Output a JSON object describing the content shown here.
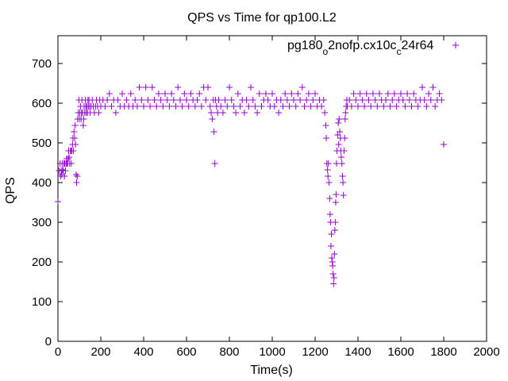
{
  "chart_data": {
    "type": "scatter",
    "title": "QPS vs Time for qp100.L2",
    "xlabel": "Time(s)",
    "ylabel": "QPS",
    "xlim": [
      0,
      2000
    ],
    "ylim": [
      0,
      770
    ],
    "xticks": [
      0,
      200,
      400,
      600,
      800,
      1000,
      1200,
      1400,
      1600,
      1800,
      2000
    ],
    "yticks": [
      0,
      100,
      200,
      300,
      400,
      500,
      600,
      700
    ],
    "legend_position": "top-right",
    "grid": false,
    "series": [
      {
        "name_parts": [
          "pg180",
          "o",
          "2nofp.cx10c",
          "c",
          "24r64"
        ],
        "marker": "plus",
        "color": "#9400d3",
        "points": [
          [
            0,
            352
          ],
          [
            5,
            430
          ],
          [
            10,
            448
          ],
          [
            12,
            416
          ],
          [
            15,
            430
          ],
          [
            18,
            420
          ],
          [
            20,
            448
          ],
          [
            22,
            432
          ],
          [
            25,
            430
          ],
          [
            28,
            448
          ],
          [
            30,
            416
          ],
          [
            32,
            448
          ],
          [
            35,
            430
          ],
          [
            38,
            448
          ],
          [
            40,
            460
          ],
          [
            42,
            448
          ],
          [
            45,
            448
          ],
          [
            48,
            460
          ],
          [
            50,
            480
          ],
          [
            52,
            464
          ],
          [
            55,
            448
          ],
          [
            58,
            480
          ],
          [
            60,
            480
          ],
          [
            62,
            448
          ],
          [
            65,
            480
          ],
          [
            68,
            496
          ],
          [
            70,
            512
          ],
          [
            72,
            480
          ],
          [
            75,
            528
          ],
          [
            78,
            512
          ],
          [
            80,
            544
          ],
          [
            82,
            496
          ],
          [
            85,
            420
          ],
          [
            87,
            400
          ],
          [
            90,
            416
          ],
          [
            92,
            560
          ],
          [
            95,
            576
          ],
          [
            98,
            608
          ],
          [
            100,
            560
          ],
          [
            102,
            576
          ],
          [
            105,
            592
          ],
          [
            108,
            560
          ],
          [
            110,
            576
          ],
          [
            112,
            608
          ],
          [
            115,
            576
          ],
          [
            118,
            544
          ],
          [
            120,
            560
          ],
          [
            122,
            592
          ],
          [
            125,
            576
          ],
          [
            128,
            608
          ],
          [
            130,
            592
          ],
          [
            132,
            576
          ],
          [
            135,
            592
          ],
          [
            138,
            576
          ],
          [
            140,
            608
          ],
          [
            142,
            592
          ],
          [
            145,
            608
          ],
          [
            148,
            592
          ],
          [
            150,
            576
          ],
          [
            155,
            592
          ],
          [
            160,
            608
          ],
          [
            165,
            592
          ],
          [
            170,
            576
          ],
          [
            175,
            592
          ],
          [
            180,
            608
          ],
          [
            185,
            592
          ],
          [
            190,
            576
          ],
          [
            195,
            608
          ],
          [
            200,
            592
          ],
          [
            210,
            608
          ],
          [
            220,
            592
          ],
          [
            230,
            608
          ],
          [
            240,
            624
          ],
          [
            250,
            592
          ],
          [
            260,
            608
          ],
          [
            270,
            576
          ],
          [
            280,
            608
          ],
          [
            290,
            592
          ],
          [
            300,
            624
          ],
          [
            310,
            592
          ],
          [
            320,
            608
          ],
          [
            330,
            592
          ],
          [
            340,
            624
          ],
          [
            350,
            592
          ],
          [
            360,
            608
          ],
          [
            370,
            592
          ],
          [
            380,
            640
          ],
          [
            390,
            608
          ],
          [
            400,
            592
          ],
          [
            410,
            640
          ],
          [
            420,
            608
          ],
          [
            430,
            592
          ],
          [
            440,
            640
          ],
          [
            450,
            608
          ],
          [
            460,
            592
          ],
          [
            470,
            624
          ],
          [
            480,
            608
          ],
          [
            490,
            592
          ],
          [
            500,
            624
          ],
          [
            510,
            608
          ],
          [
            520,
            592
          ],
          [
            530,
            624
          ],
          [
            540,
            608
          ],
          [
            550,
            592
          ],
          [
            560,
            640
          ],
          [
            570,
            608
          ],
          [
            580,
            592
          ],
          [
            590,
            624
          ],
          [
            600,
            608
          ],
          [
            610,
            592
          ],
          [
            620,
            624
          ],
          [
            630,
            608
          ],
          [
            640,
            592
          ],
          [
            650,
            608
          ],
          [
            660,
            624
          ],
          [
            670,
            592
          ],
          [
            680,
            640
          ],
          [
            690,
            608
          ],
          [
            700,
            640
          ],
          [
            710,
            592
          ],
          [
            715,
            576
          ],
          [
            720,
            560
          ],
          [
            725,
            608
          ],
          [
            728,
            528
          ],
          [
            732,
            448
          ],
          [
            735,
            608
          ],
          [
            740,
            592
          ],
          [
            745,
            576
          ],
          [
            750,
            608
          ],
          [
            760,
            592
          ],
          [
            770,
            576
          ],
          [
            780,
            608
          ],
          [
            790,
            592
          ],
          [
            800,
            640
          ],
          [
            810,
            608
          ],
          [
            820,
            592
          ],
          [
            830,
            576
          ],
          [
            840,
            624
          ],
          [
            850,
            592
          ],
          [
            860,
            608
          ],
          [
            870,
            576
          ],
          [
            880,
            608
          ],
          [
            890,
            592
          ],
          [
            900,
            640
          ],
          [
            910,
            608
          ],
          [
            920,
            592
          ],
          [
            930,
            576
          ],
          [
            940,
            624
          ],
          [
            950,
            592
          ],
          [
            960,
            608
          ],
          [
            970,
            624
          ],
          [
            980,
            608
          ],
          [
            990,
            592
          ],
          [
            1000,
            624
          ],
          [
            1010,
            592
          ],
          [
            1020,
            608
          ],
          [
            1030,
            576
          ],
          [
            1040,
            608
          ],
          [
            1050,
            592
          ],
          [
            1060,
            624
          ],
          [
            1070,
            608
          ],
          [
            1080,
            592
          ],
          [
            1090,
            624
          ],
          [
            1100,
            608
          ],
          [
            1110,
            592
          ],
          [
            1120,
            624
          ],
          [
            1130,
            608
          ],
          [
            1140,
            640
          ],
          [
            1150,
            592
          ],
          [
            1160,
            608
          ],
          [
            1170,
            624
          ],
          [
            1180,
            592
          ],
          [
            1190,
            608
          ],
          [
            1200,
            624
          ],
          [
            1210,
            592
          ],
          [
            1220,
            608
          ],
          [
            1230,
            592
          ],
          [
            1240,
            608
          ],
          [
            1245,
            576
          ],
          [
            1250,
            544
          ],
          [
            1252,
            512
          ],
          [
            1255,
            448
          ],
          [
            1258,
            432
          ],
          [
            1260,
            416
          ],
          [
            1262,
            448
          ],
          [
            1265,
            400
          ],
          [
            1268,
            360
          ],
          [
            1270,
            320
          ],
          [
            1272,
            300
          ],
          [
            1274,
            240
          ],
          [
            1276,
            270
          ],
          [
            1278,
            210
          ],
          [
            1280,
            200
          ],
          [
            1282,
            190
          ],
          [
            1284,
            170
          ],
          [
            1286,
            145
          ],
          [
            1288,
            160
          ],
          [
            1290,
            220
          ],
          [
            1292,
            280
          ],
          [
            1294,
            300
          ],
          [
            1296,
            350
          ],
          [
            1298,
            370
          ],
          [
            1300,
            448
          ],
          [
            1302,
            480
          ],
          [
            1305,
            520
          ],
          [
            1308,
            550
          ],
          [
            1310,
            496
          ],
          [
            1312,
            560
          ],
          [
            1315,
            528
          ],
          [
            1318,
            512
          ],
          [
            1320,
            480
          ],
          [
            1322,
            464
          ],
          [
            1325,
            448
          ],
          [
            1328,
            416
          ],
          [
            1330,
            400
          ],
          [
            1332,
            368
          ],
          [
            1335,
            480
          ],
          [
            1338,
            512
          ],
          [
            1340,
            560
          ],
          [
            1342,
            576
          ],
          [
            1345,
            592
          ],
          [
            1348,
            608
          ],
          [
            1350,
            592
          ],
          [
            1360,
            608
          ],
          [
            1370,
            592
          ],
          [
            1380,
            624
          ],
          [
            1390,
            608
          ],
          [
            1400,
            592
          ],
          [
            1410,
            624
          ],
          [
            1420,
            608
          ],
          [
            1430,
            592
          ],
          [
            1440,
            624
          ],
          [
            1450,
            608
          ],
          [
            1460,
            592
          ],
          [
            1470,
            624
          ],
          [
            1480,
            608
          ],
          [
            1490,
            592
          ],
          [
            1500,
            624
          ],
          [
            1510,
            608
          ],
          [
            1520,
            592
          ],
          [
            1530,
            608
          ],
          [
            1540,
            624
          ],
          [
            1550,
            592
          ],
          [
            1560,
            608
          ],
          [
            1570,
            624
          ],
          [
            1580,
            592
          ],
          [
            1590,
            608
          ],
          [
            1600,
            624
          ],
          [
            1610,
            608
          ],
          [
            1620,
            592
          ],
          [
            1630,
            624
          ],
          [
            1640,
            608
          ],
          [
            1650,
            592
          ],
          [
            1660,
            624
          ],
          [
            1670,
            608
          ],
          [
            1680,
            592
          ],
          [
            1690,
            608
          ],
          [
            1700,
            640
          ],
          [
            1710,
            608
          ],
          [
            1720,
            592
          ],
          [
            1730,
            624
          ],
          [
            1740,
            608
          ],
          [
            1750,
            640
          ],
          [
            1760,
            592
          ],
          [
            1770,
            608
          ],
          [
            1780,
            624
          ],
          [
            1790,
            608
          ],
          [
            1800,
            496
          ]
        ]
      }
    ]
  }
}
